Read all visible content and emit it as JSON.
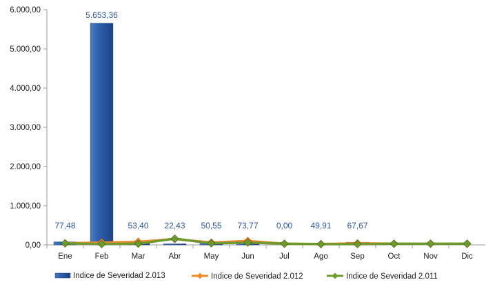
{
  "chart_data": {
    "type": "bar",
    "categories": [
      "Ene",
      "Feb",
      "Mar",
      "Abr",
      "May",
      "Jun",
      "Jul",
      "Ago",
      "Sep",
      "Oct",
      "Nov",
      "Dic"
    ],
    "ylim": [
      0,
      6000
    ],
    "yticks": [
      "0,00",
      "1.000,00",
      "2.000,00",
      "3.000,00",
      "4.000,00",
      "5.000,00",
      "6.000,00"
    ],
    "series": [
      {
        "name": "Indice de Severidad 2.013",
        "type": "bar",
        "color": "#2f5fa8",
        "values": [
          77.48,
          5653.36,
          53.4,
          22.43,
          50.55,
          73.77,
          0.0,
          49.91,
          67.67,
          null,
          null,
          null
        ],
        "labels": [
          "77,48",
          "5.653,36",
          "53,40",
          "22,43",
          "50,55",
          "73,77",
          "0,00",
          "49,91",
          "67,67",
          "",
          "",
          ""
        ]
      },
      {
        "name": "Indice de Severidad 2.012",
        "type": "line",
        "color": "#f08b2c",
        "values": [
          40,
          60,
          80,
          150,
          60,
          100,
          30,
          20,
          40,
          30,
          30,
          30
        ]
      },
      {
        "name": "Indice de Severidad 2.011",
        "type": "line",
        "color": "#6f9a2d",
        "values": [
          40,
          20,
          30,
          160,
          40,
          60,
          30,
          20,
          20,
          30,
          30,
          30
        ]
      }
    ],
    "grid": false,
    "legend_position": "bottom"
  }
}
